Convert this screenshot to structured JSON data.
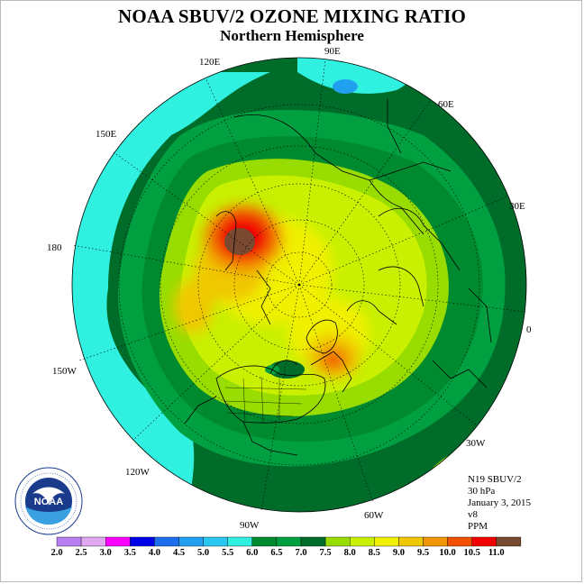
{
  "title": "NOAA SBUV/2 OZONE MIXING RATIO",
  "subtitle": "Northern Hemisphere",
  "longitude_labels": [
    "90E",
    "60E",
    "30E",
    "0",
    "30W",
    "60W",
    "90W",
    "120W",
    "150W",
    "180",
    "150E",
    "120E"
  ],
  "info": {
    "satellite": "N19 SBUV/2",
    "level": "30 hPa",
    "date": "January 3, 2015",
    "version": "v8",
    "units": "PPM"
  },
  "colorbar": {
    "ticks": [
      "2.0",
      "2.5",
      "3.0",
      "3.5",
      "4.0",
      "4.5",
      "5.0",
      "5.5",
      "6.0",
      "6.5",
      "7.0",
      "7.5",
      "8.0",
      "8.5",
      "9.0",
      "9.5",
      "10.0",
      "10.5",
      "11.0"
    ],
    "colors": [
      "#b77ff0",
      "#e0a8f0",
      "#ff00ff",
      "#0000e8",
      "#1e6ff0",
      "#22a0f0",
      "#28c8f0",
      "#30f0e0",
      "#008a30",
      "#00a040",
      "#006c2a",
      "#98dc00",
      "#c8f000",
      "#f0f000",
      "#f0c800",
      "#f09600",
      "#f05000",
      "#f00000",
      "#7a4a30"
    ]
  },
  "logo_text": "NOAA"
}
